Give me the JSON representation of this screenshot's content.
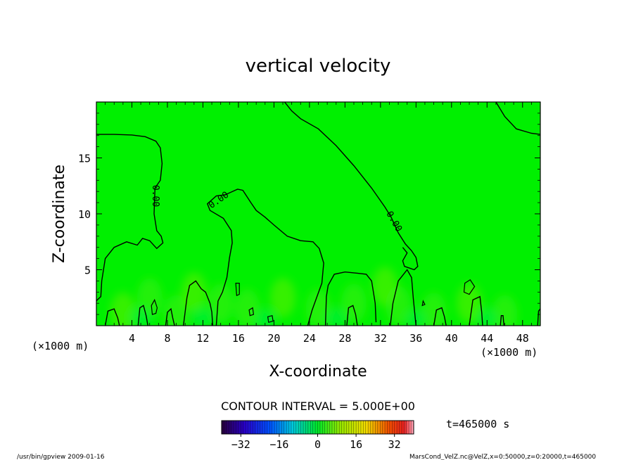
{
  "chart_data": {
    "type": "heatmap",
    "title": "vertical velocity",
    "xlabel": "X-coordinate",
    "ylabel": "Z-coordinate",
    "x_units_left": "(×1000 m)",
    "x_units_right": "(×1000 m)",
    "xlim": [
      0,
      50
    ],
    "ylim": [
      0,
      20
    ],
    "xticks": [
      4,
      8,
      12,
      16,
      20,
      24,
      28,
      32,
      36,
      40,
      44,
      48
    ],
    "yticks": [
      5,
      10,
      15
    ],
    "contour_interval_text": "CONTOUR INTERVAL = 5.000E+00",
    "contour_labels": [
      "0.00",
      "0.00",
      "0.00"
    ],
    "colorbar": {
      "ticks": [
        -32,
        -16,
        0,
        16,
        32
      ],
      "range": [
        -40,
        40
      ]
    },
    "time_label": "t=465000 s",
    "field_base_color": "#00f000",
    "zero_contours": [
      [
        [
          0,
          17.1
        ],
        [
          2,
          17.1
        ],
        [
          4,
          17.05
        ],
        [
          5.5,
          16.9
        ],
        [
          6.7,
          16.5
        ],
        [
          7.2,
          15.9
        ],
        [
          7.4,
          14.5
        ],
        [
          7.2,
          13
        ],
        [
          6.6,
          12.3
        ],
        [
          6.5,
          10
        ],
        [
          6.8,
          8.5
        ],
        [
          7.3,
          8.0
        ],
        [
          7.5,
          7.4
        ],
        [
          6.8,
          6.9
        ],
        [
          6.0,
          7.6
        ],
        [
          5.2,
          7.8
        ],
        [
          4.6,
          7.2
        ],
        [
          3.4,
          7.5
        ],
        [
          2,
          7.0
        ],
        [
          1,
          6.0
        ],
        [
          0.6,
          4.0
        ],
        [
          0.5,
          2.6
        ],
        [
          0.1,
          2.3
        ],
        [
          0,
          2.2
        ]
      ],
      [
        [
          21.2,
          20
        ],
        [
          22,
          19.2
        ],
        [
          23,
          18.5
        ],
        [
          25,
          17.6
        ],
        [
          27,
          16.1
        ],
        [
          29,
          14.3
        ],
        [
          31,
          12.3
        ],
        [
          32.5,
          10.6
        ],
        [
          33.2,
          9.7
        ],
        [
          34,
          8.3
        ],
        [
          34.8,
          7.3
        ],
        [
          35.5,
          6.7
        ],
        [
          36,
          6.1
        ],
        [
          36.2,
          5.3
        ],
        [
          35.8,
          5.0
        ],
        [
          34.7,
          5.3
        ],
        [
          34.5,
          5.8
        ],
        [
          35,
          6.5
        ],
        [
          34.5,
          7.0
        ]
      ],
      [
        [
          45,
          20
        ],
        [
          46,
          18.7
        ],
        [
          47.3,
          17.6
        ],
        [
          49,
          17.2
        ],
        [
          50,
          17.1
        ]
      ],
      [
        [
          13.5,
          0
        ],
        [
          13.7,
          2.2
        ],
        [
          14.2,
          3.0
        ],
        [
          14.7,
          4.3
        ],
        [
          15.0,
          6.1
        ],
        [
          15.3,
          7.4
        ],
        [
          15.2,
          8.5
        ],
        [
          14.3,
          9.6
        ],
        [
          12.8,
          10.3
        ],
        [
          12.5,
          10.9
        ],
        [
          13.5,
          11.6
        ],
        [
          14.5,
          11.7
        ],
        [
          15.9,
          12.2
        ],
        [
          16.5,
          12.1
        ],
        [
          17.4,
          11.0
        ],
        [
          18.0,
          10.3
        ],
        [
          19.0,
          9.7
        ],
        [
          20.0,
          9.0
        ],
        [
          21.5,
          8.0
        ],
        [
          23.0,
          7.6
        ],
        [
          24.4,
          7.5
        ],
        [
          25.1,
          6.9
        ],
        [
          25.6,
          5.6
        ],
        [
          25.4,
          3.8
        ],
        [
          24.8,
          2.5
        ],
        [
          24.3,
          1.4
        ],
        [
          23.8,
          0
        ]
      ],
      [
        [
          25.8,
          0
        ],
        [
          25.9,
          2.6
        ],
        [
          26.1,
          3.6
        ],
        [
          26.8,
          4.6
        ],
        [
          28.0,
          4.8
        ],
        [
          29.3,
          4.7
        ],
        [
          30.4,
          4.6
        ],
        [
          31.0,
          4.0
        ],
        [
          31.4,
          2.0
        ],
        [
          31.5,
          0.3
        ]
      ],
      [
        [
          33.1,
          0
        ],
        [
          33.4,
          2.0
        ],
        [
          34,
          4.0
        ],
        [
          35.0,
          5.0
        ],
        [
          35.5,
          4.3
        ],
        [
          35.7,
          2.4
        ],
        [
          36,
          0
        ]
      ],
      [
        [
          9.8,
          0
        ],
        [
          10.2,
          2.5
        ],
        [
          10.5,
          3.6
        ],
        [
          11.2,
          4.0
        ],
        [
          11.8,
          3.3
        ],
        [
          12.3,
          3.0
        ],
        [
          12.8,
          2.0
        ],
        [
          13.0,
          1.2
        ],
        [
          13.1,
          0
        ]
      ],
      [
        [
          1,
          0
        ],
        [
          1.3,
          1.3
        ],
        [
          2,
          1.5
        ],
        [
          2.4,
          0.7
        ],
        [
          2.6,
          0
        ]
      ],
      [
        [
          4.7,
          0
        ],
        [
          4.9,
          1.6
        ],
        [
          5.3,
          1.8
        ],
        [
          5.6,
          0.9
        ],
        [
          5.8,
          0
        ]
      ],
      [
        [
          7.8,
          0
        ],
        [
          8.0,
          1.2
        ],
        [
          8.4,
          1.5
        ],
        [
          8.6,
          0.7
        ],
        [
          8.8,
          0
        ]
      ],
      [
        [
          28.2,
          0
        ],
        [
          28.4,
          1.6
        ],
        [
          28.9,
          1.8
        ],
        [
          29.2,
          1.0
        ],
        [
          29.4,
          0
        ]
      ],
      [
        [
          38.0,
          0
        ],
        [
          38.3,
          1.4
        ],
        [
          38.9,
          1.6
        ],
        [
          39.2,
          0.8
        ],
        [
          39.4,
          0
        ]
      ],
      [
        [
          42.0,
          0
        ],
        [
          42.4,
          2.3
        ],
        [
          43.2,
          2.6
        ],
        [
          43.4,
          1.2
        ],
        [
          43.5,
          0
        ]
      ],
      [
        [
          45.5,
          0
        ],
        [
          45.6,
          0.9
        ],
        [
          45.8,
          0.9
        ],
        [
          45.9,
          0
        ]
      ],
      [
        [
          49.7,
          0
        ],
        [
          49.8,
          1.3
        ],
        [
          50,
          1.5
        ]
      ]
    ],
    "closed_contours": [
      [
        [
          6.3,
          1.0
        ],
        [
          6.2,
          1.8
        ],
        [
          6.55,
          2.3
        ],
        [
          6.85,
          1.6
        ],
        [
          6.7,
          1.1
        ]
      ],
      [
        [
          15.8,
          2.7
        ],
        [
          15.7,
          3.8
        ],
        [
          16.1,
          3.8
        ],
        [
          16.1,
          2.8
        ]
      ],
      [
        [
          17.3,
          0.9
        ],
        [
          17.2,
          1.4
        ],
        [
          17.6,
          1.6
        ],
        [
          17.7,
          1.0
        ]
      ],
      [
        [
          19.4,
          0.3
        ],
        [
          19.3,
          0.8
        ],
        [
          19.8,
          0.9
        ],
        [
          19.9,
          0.4
        ]
      ],
      [
        [
          41.4,
          3.0
        ],
        [
          41.5,
          3.8
        ],
        [
          42.1,
          4.1
        ],
        [
          42.6,
          3.5
        ],
        [
          42.0,
          2.8
        ]
      ],
      [
        [
          36.7,
          1.8
        ],
        [
          36.8,
          2.2
        ],
        [
          37.0,
          1.9
        ]
      ]
    ],
    "contour_label_positions": [
      [
        6.6,
        11.6
      ],
      [
        13.8,
        11.2
      ],
      [
        33.5,
        9.3
      ]
    ],
    "contour_label_angles": [
      90,
      -35,
      60
    ]
  },
  "footer": {
    "left": "/usr/bin/gpview   2009-01-16",
    "right": "MarsCond_VelZ.nc@VelZ,x=0:50000,z=0:20000,t=465000"
  }
}
